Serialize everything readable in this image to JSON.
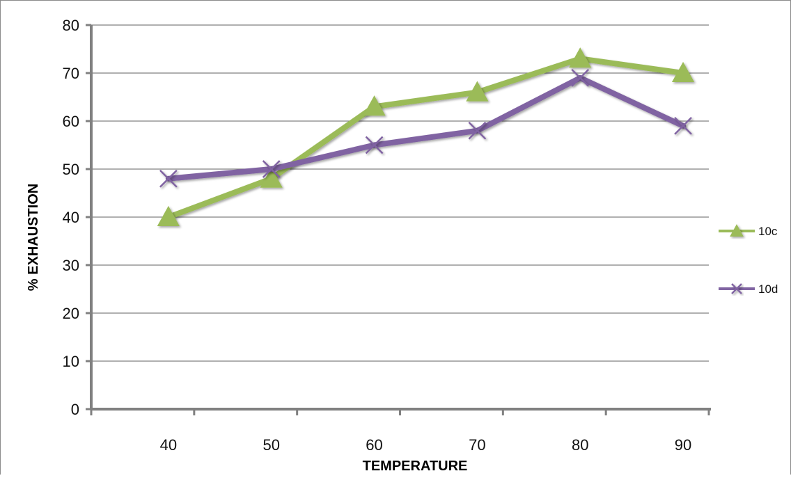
{
  "chart_data": {
    "type": "line",
    "title": "",
    "xlabel": "TEMPERATURE",
    "ylabel": "% EXHAUSTION",
    "categories": [
      "40",
      "50",
      "60",
      "70",
      "80",
      "90"
    ],
    "x": [
      40,
      50,
      60,
      70,
      80,
      90
    ],
    "ylim": [
      0,
      80
    ],
    "yticks": [
      0,
      10,
      20,
      30,
      40,
      50,
      60,
      70,
      80
    ],
    "grid": true,
    "legend_position": "right",
    "series": [
      {
        "name": "10c",
        "values": [
          40,
          48,
          63,
          66,
          73,
          70
        ],
        "color": "#9bbb59",
        "marker": "triangle"
      },
      {
        "name": "10d",
        "values": [
          48,
          50,
          55,
          58,
          69,
          59
        ],
        "color": "#8064a2",
        "marker": "x"
      }
    ]
  }
}
